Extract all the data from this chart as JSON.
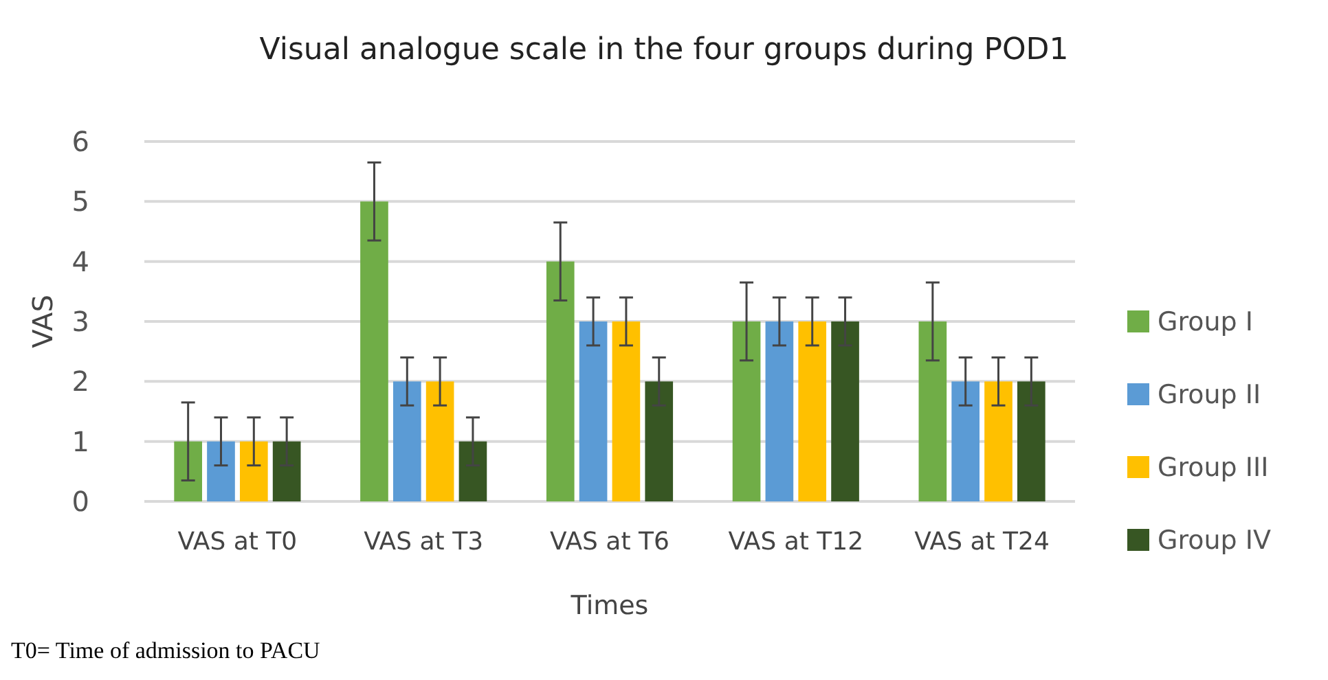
{
  "chart_data": {
    "type": "bar",
    "title": "Visual analogue scale in the four groups during POD1",
    "xlabel": "Times",
    "ylabel": "VAS",
    "categories": [
      "VAS at T0",
      "VAS at T3",
      "VAS at T6",
      "VAS at T12",
      "VAS at T24"
    ],
    "series": [
      {
        "name": "Group I",
        "color": "#70ad47",
        "values": [
          1,
          5,
          4,
          3,
          3
        ],
        "errors": [
          0.65,
          0.65,
          0.65,
          0.65,
          0.65
        ]
      },
      {
        "name": "Group II",
        "color": "#5b9bd5",
        "values": [
          1,
          2,
          3,
          3,
          2
        ],
        "errors": [
          0.4,
          0.4,
          0.4,
          0.4,
          0.4
        ]
      },
      {
        "name": "Group III",
        "color": "#ffc000",
        "values": [
          1,
          2,
          3,
          3,
          2
        ],
        "errors": [
          0.4,
          0.4,
          0.4,
          0.4,
          0.4
        ]
      },
      {
        "name": "Group IV",
        "color": "#375623",
        "values": [
          1,
          1,
          2,
          3,
          2
        ],
        "errors": [
          0.4,
          0.4,
          0.4,
          0.4,
          0.4
        ]
      }
    ],
    "ylim": [
      0,
      6
    ],
    "yticks": [
      0,
      1,
      2,
      3,
      4,
      5,
      6
    ],
    "grid": "y",
    "legend": "right",
    "annotations": [
      "T0= Time of admission to PACU"
    ]
  }
}
